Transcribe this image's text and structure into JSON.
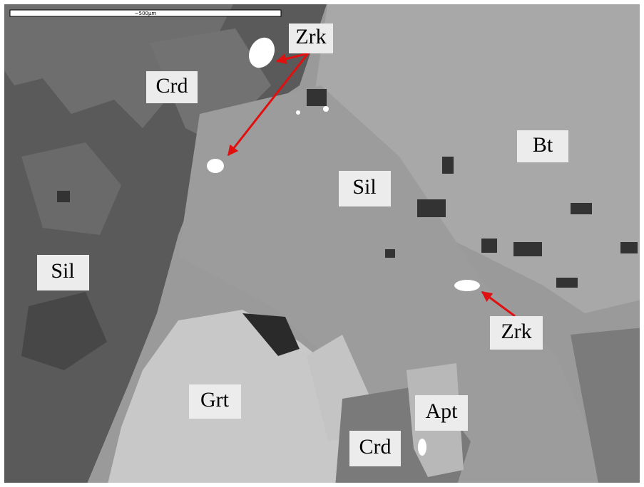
{
  "scale_bar": {
    "label": "~500µm"
  },
  "labels": [
    "Zrk",
    "Crd",
    "Bt",
    "Sil",
    "Sil",
    "Zrk",
    "Grt",
    "Apt",
    "Crd"
  ]
}
